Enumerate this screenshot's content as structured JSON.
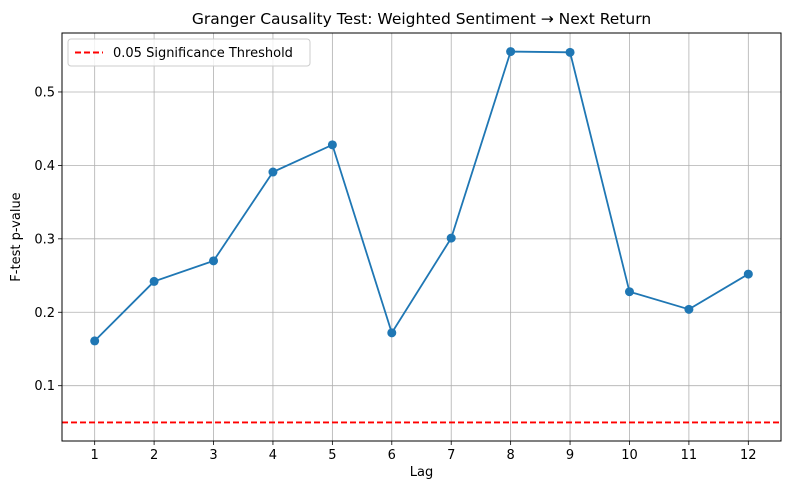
{
  "chart_data": {
    "type": "line",
    "title": "Granger Causality Test: Weighted Sentiment → Next Return",
    "xlabel": "Lag",
    "ylabel": "F-test p-value",
    "x": [
      1,
      2,
      3,
      4,
      5,
      6,
      7,
      8,
      9,
      10,
      11,
      12
    ],
    "series": [
      {
        "values": [
          0.161,
          0.242,
          0.27,
          0.391,
          0.428,
          0.172,
          0.301,
          0.555,
          0.554,
          0.228,
          0.204,
          0.252
        ],
        "color": "#1f77b4",
        "marker": "circle"
      }
    ],
    "threshold": {
      "value": 0.05,
      "label": "0.05 Significance Threshold",
      "color": "#ff0000",
      "style": "dashed"
    },
    "xlim": [
      0.45,
      12.55
    ],
    "ylim": [
      0.0247,
      0.5803
    ],
    "xticks": [
      1,
      2,
      3,
      4,
      5,
      6,
      7,
      8,
      9,
      10,
      11,
      12
    ],
    "yticks": [
      0.1,
      0.2,
      0.3,
      0.4,
      0.5
    ],
    "grid": true,
    "legend": "upper-left"
  }
}
